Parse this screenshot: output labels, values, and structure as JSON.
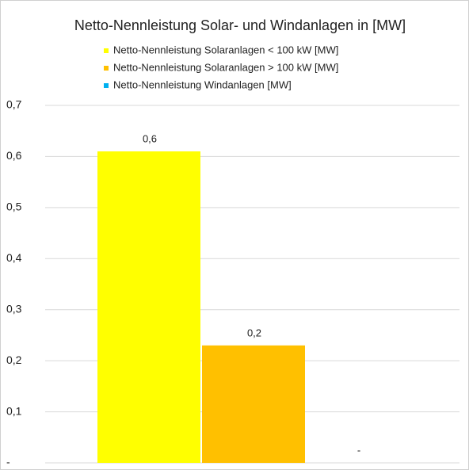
{
  "chart_data": {
    "type": "bar",
    "title": "Netto-Nennleistung Solar- und Windanlagen in [MW]",
    "categories": [
      null
    ],
    "series": [
      {
        "name": "Netto-Nennleistung Solaranlagen < 100 kW [MW]",
        "color": "#ffff00",
        "values": [
          0.61
        ],
        "value_labels": [
          "0,6"
        ]
      },
      {
        "name": "Netto-Nennleistung Solaranlagen > 100 kW [MW]",
        "color": "#ffc000",
        "values": [
          0.23
        ],
        "value_labels": [
          "0,2"
        ]
      },
      {
        "name": "Netto-Nennleistung Windanlagen [MW]",
        "color": "#00b0f0",
        "values": [
          0
        ],
        "value_labels": [
          "-"
        ]
      }
    ],
    "ylim": [
      0,
      0.7
    ],
    "yticks": [
      {
        "value": 0,
        "label": "-"
      },
      {
        "value": 0.1,
        "label": "0,1"
      },
      {
        "value": 0.2,
        "label": "0,2"
      },
      {
        "value": 0.3,
        "label": "0,3"
      },
      {
        "value": 0.4,
        "label": "0,4"
      },
      {
        "value": 0.5,
        "label": "0,5"
      },
      {
        "value": 0.6,
        "label": "0,6"
      },
      {
        "value": 0.7,
        "label": "0,7"
      }
    ],
    "grid": true,
    "legend": "top"
  }
}
